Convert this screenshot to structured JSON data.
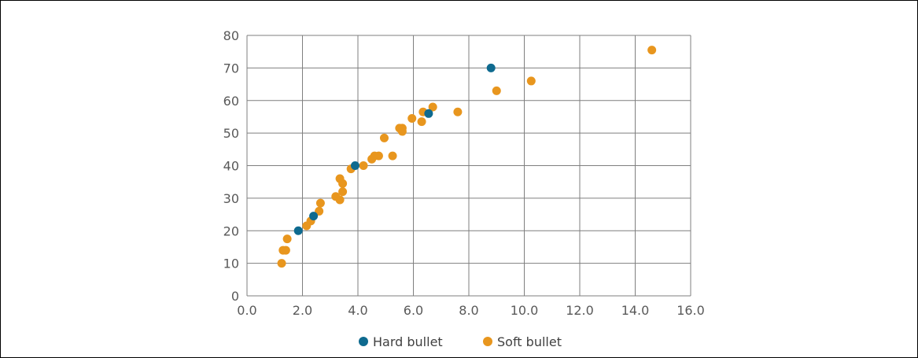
{
  "chart_data": {
    "type": "scatter",
    "title": "",
    "xlabel": "",
    "ylabel": "",
    "xlim": [
      0,
      16
    ],
    "ylim": [
      0,
      80
    ],
    "x_ticks": [
      "0.0",
      "2.0",
      "4.0",
      "6.0",
      "8.0",
      "10.0",
      "12.0",
      "14.0",
      "16.0"
    ],
    "y_ticks": [
      "0",
      "10",
      "20",
      "30",
      "40",
      "50",
      "60",
      "70",
      "80"
    ],
    "grid": true,
    "legend_position": "bottom",
    "series": [
      {
        "name": "Hard bullet",
        "color": "#0e6a8f",
        "points": [
          {
            "x": 1.85,
            "y": 20
          },
          {
            "x": 2.4,
            "y": 24.5
          },
          {
            "x": 3.9,
            "y": 40
          },
          {
            "x": 6.55,
            "y": 56
          },
          {
            "x": 8.8,
            "y": 70
          }
        ]
      },
      {
        "name": "Soft bullet",
        "color": "#e8961e",
        "points": [
          {
            "x": 1.25,
            "y": 10
          },
          {
            "x": 1.3,
            "y": 14
          },
          {
            "x": 1.4,
            "y": 14
          },
          {
            "x": 1.45,
            "y": 17.5
          },
          {
            "x": 2.15,
            "y": 21.5
          },
          {
            "x": 2.3,
            "y": 23
          },
          {
            "x": 2.6,
            "y": 26
          },
          {
            "x": 2.65,
            "y": 28.5
          },
          {
            "x": 3.2,
            "y": 30.5
          },
          {
            "x": 3.35,
            "y": 29.5
          },
          {
            "x": 3.45,
            "y": 32
          },
          {
            "x": 3.35,
            "y": 36
          },
          {
            "x": 3.45,
            "y": 34.5
          },
          {
            "x": 3.75,
            "y": 39
          },
          {
            "x": 4.2,
            "y": 40
          },
          {
            "x": 4.5,
            "y": 42
          },
          {
            "x": 4.6,
            "y": 43
          },
          {
            "x": 4.75,
            "y": 43
          },
          {
            "x": 4.95,
            "y": 48.5
          },
          {
            "x": 5.25,
            "y": 43
          },
          {
            "x": 5.5,
            "y": 51.5
          },
          {
            "x": 5.6,
            "y": 51.5
          },
          {
            "x": 5.6,
            "y": 50.5
          },
          {
            "x": 5.95,
            "y": 54.5
          },
          {
            "x": 6.3,
            "y": 53.5
          },
          {
            "x": 6.35,
            "y": 56.5
          },
          {
            "x": 6.7,
            "y": 58
          },
          {
            "x": 7.6,
            "y": 56.5
          },
          {
            "x": 9.0,
            "y": 63
          },
          {
            "x": 10.25,
            "y": 66
          },
          {
            "x": 14.6,
            "y": 75.5
          }
        ]
      }
    ]
  }
}
